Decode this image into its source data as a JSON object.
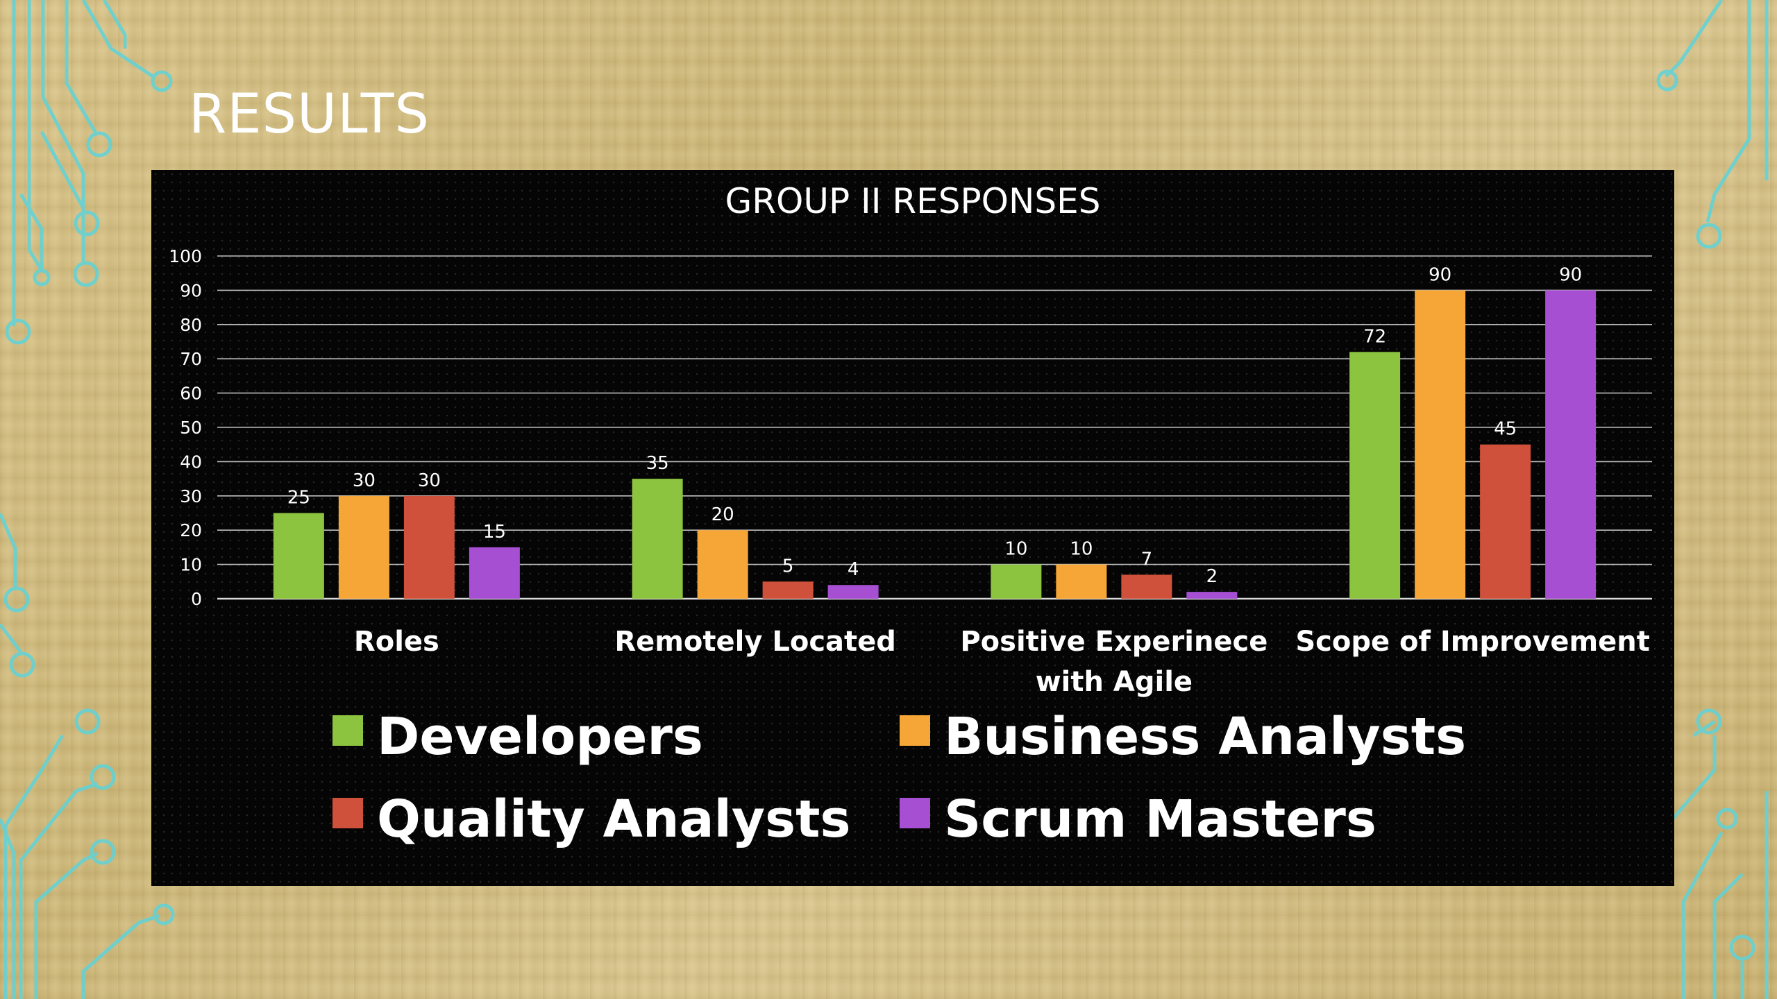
{
  "slide": {
    "title": "RESULTS",
    "colors": {
      "background": "#d4bf84",
      "circuit": "#5fd3d9",
      "chart_background": "#050505"
    }
  },
  "chart_data": {
    "type": "bar",
    "title": "GROUP II RESPONSES",
    "xlabel": "",
    "ylabel": "",
    "ylim": [
      0,
      100
    ],
    "yticks": [
      "0",
      "10",
      "20",
      "30",
      "40",
      "50",
      "60",
      "70",
      "80",
      "90",
      "100"
    ],
    "grid": true,
    "legend_position": "bottom",
    "categories": [
      [
        "Roles"
      ],
      [
        "Remotely Located"
      ],
      [
        "Positive Experinece",
        "with Agile"
      ],
      [
        "Scope of Improvement"
      ]
    ],
    "series": [
      {
        "name": "Developers",
        "color": "#8cc43f",
        "values": [
          25,
          35,
          10,
          72
        ]
      },
      {
        "name": "Business Analysts",
        "color": "#f5a636",
        "values": [
          30,
          20,
          10,
          90
        ]
      },
      {
        "name": "Quality Analysts",
        "color": "#d0513b",
        "values": [
          30,
          5,
          7,
          45
        ]
      },
      {
        "name": "Scrum Masters",
        "color": "#a64fd2",
        "values": [
          15,
          4,
          2,
          90
        ]
      }
    ]
  }
}
